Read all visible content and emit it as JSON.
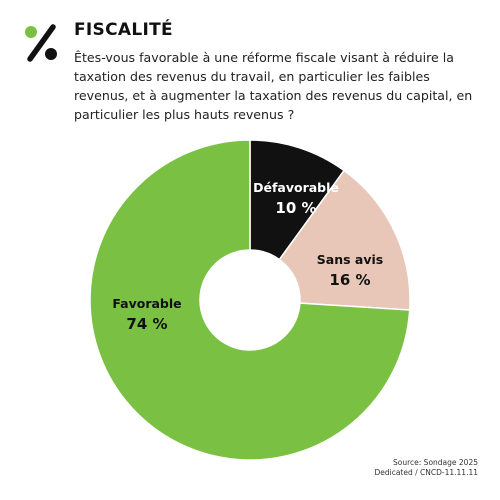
{
  "header": {
    "title": "FISCALITÉ",
    "question": "Êtes-vous favorable à une réforme fiscale visant à réduire la taxation des revenus du travail, en particulier les faibles revenus, et à augmenter la taxation des revenus du capital, en particulier les plus hauts revenus ?"
  },
  "logo": {
    "icon": "percent-icon",
    "color": "#111111"
  },
  "chart_data": {
    "type": "pie",
    "variant": "donut",
    "title": "",
    "slices": [
      {
        "label": "Défavorable",
        "value": 10,
        "value_label": "10 %",
        "color": "#111111",
        "text_color": "#ffffff"
      },
      {
        "label": "Sans avis",
        "value": 16,
        "value_label": "16 %",
        "color": "#e8c7b8",
        "text_color": "#111111"
      },
      {
        "label": "Favorable",
        "value": 74,
        "value_label": "74 %",
        "color": "#7ac143",
        "text_color": "#111111"
      }
    ]
  },
  "source": {
    "line1": "Source: Sondage 2025",
    "line2": "Dedicated / CNCD-11.11.11"
  }
}
